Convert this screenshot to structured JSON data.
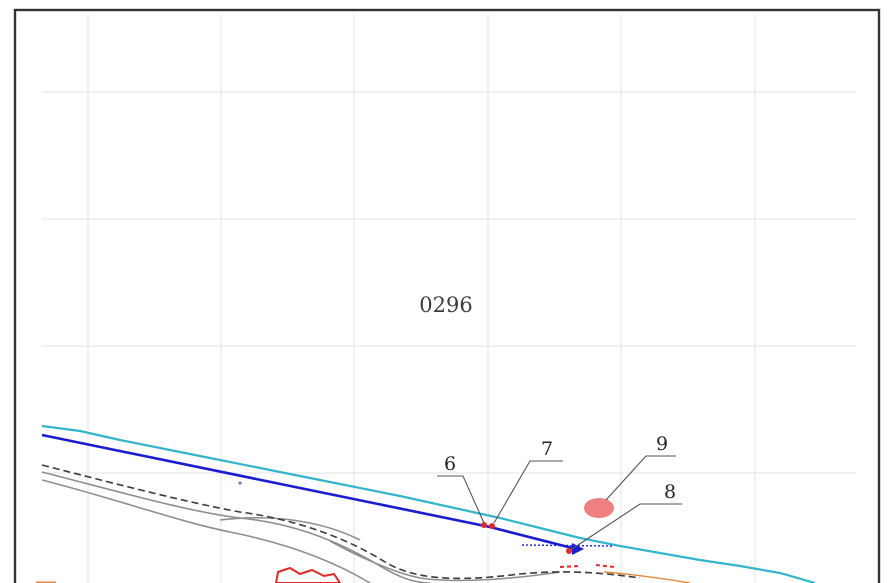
{
  "map": {
    "parcel_label": "0296",
    "callouts": [
      {
        "label": "6"
      },
      {
        "label": "7"
      },
      {
        "label": "8"
      },
      {
        "label": "9"
      }
    ],
    "colors": {
      "frame": "#333333",
      "grid": "#e3e3e3",
      "boundary_line": "#1c1ccf",
      "river": "#35b5cc",
      "road_gray": "#8f8f8f",
      "road_dashed": "#3a3a3a",
      "feature_red": "#e02a2a",
      "marker_fill": "#f08080",
      "label_text": "#3c3c3c"
    }
  }
}
